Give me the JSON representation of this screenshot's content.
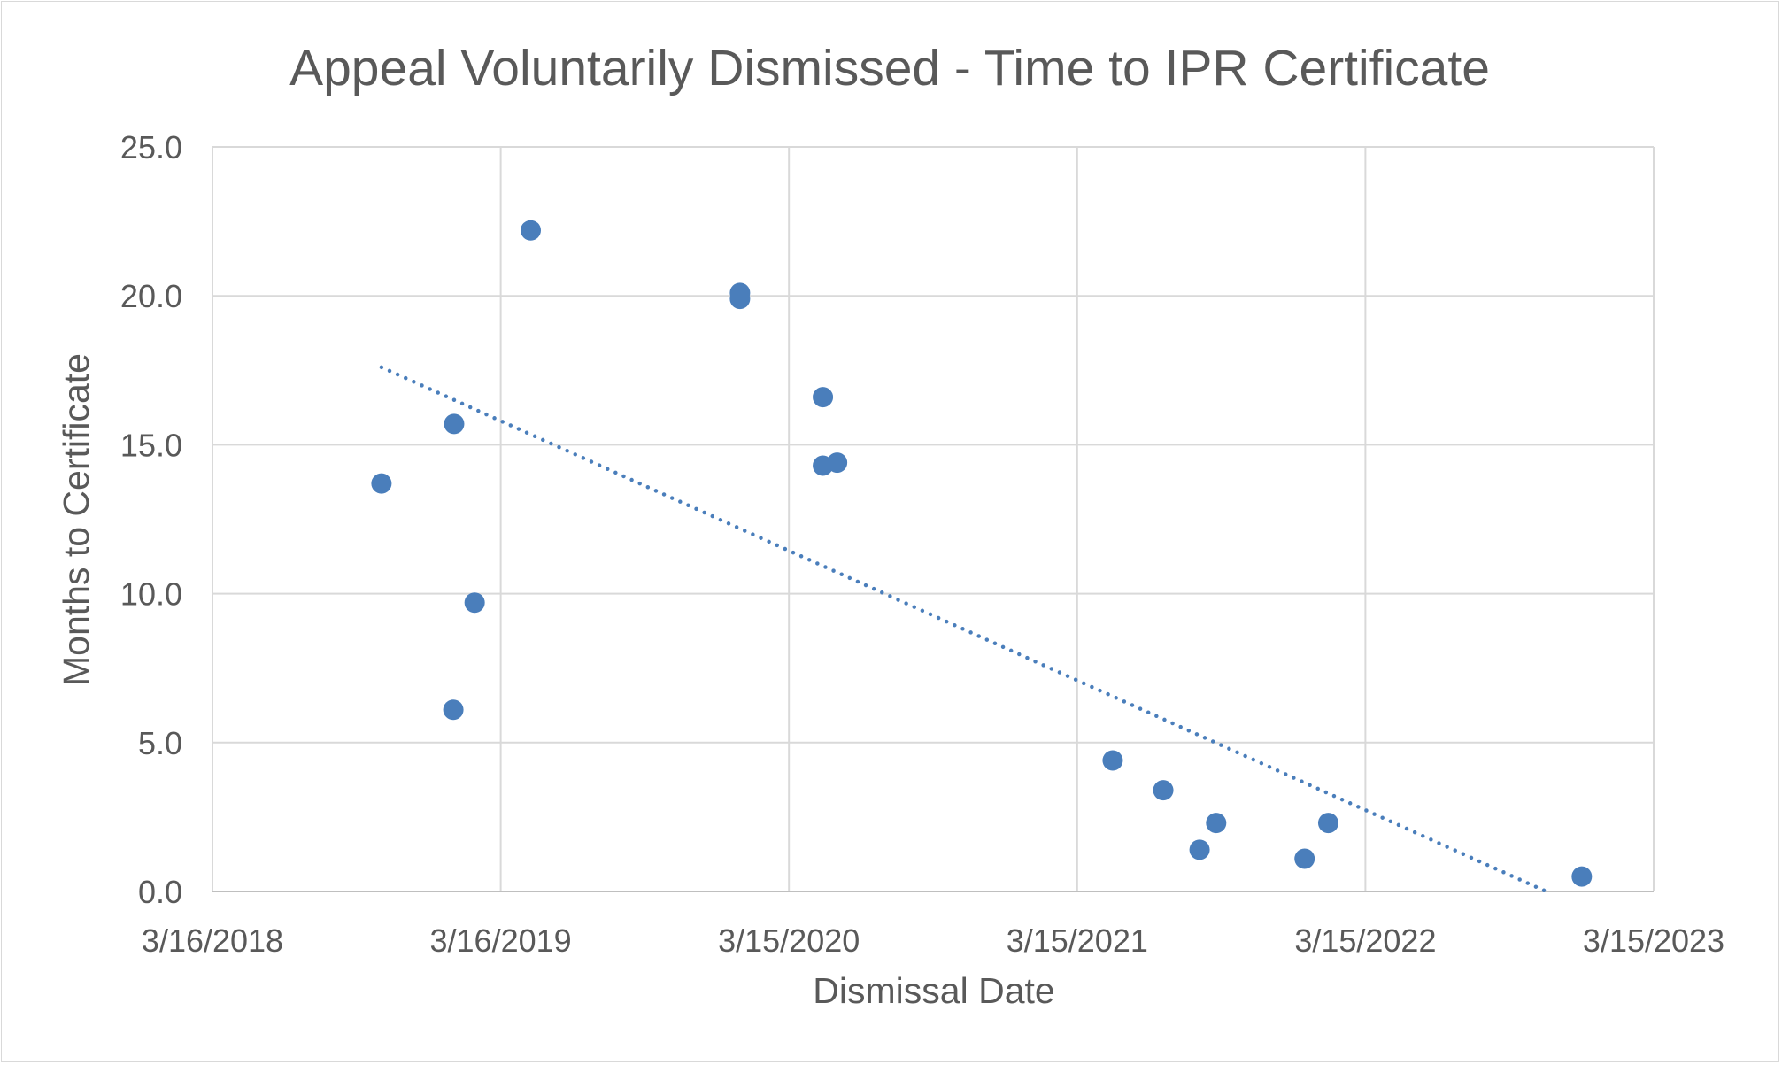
{
  "chart_data": {
    "type": "scatter",
    "title": "Appeal Voluntarily Dismissed - Time to IPR Certificate",
    "xlabel": "Dismissal Date",
    "ylabel": "Months to Certificate",
    "xlim": [
      "2018-03-16",
      "2023-03-15"
    ],
    "ylim": [
      0,
      25
    ],
    "x_ticks": [
      "3/16/2018",
      "3/16/2019",
      "3/15/2020",
      "3/15/2021",
      "3/15/2022",
      "3/15/2023"
    ],
    "x_tick_dates": [
      "2018-03-16",
      "2019-03-16",
      "2020-03-15",
      "2021-03-15",
      "2022-03-15",
      "2023-03-15"
    ],
    "y_ticks": [
      "0.0",
      "5.0",
      "10.0",
      "15.0",
      "20.0",
      "25.0"
    ],
    "y_tick_values": [
      0,
      5,
      10,
      15,
      20,
      25
    ],
    "grid": true,
    "trendline": "linear, dotted",
    "marker_color": "#4a7ebb",
    "points": [
      {
        "x": "2018-10-16",
        "y": 13.7
      },
      {
        "x": "2019-01-16",
        "y": 15.7
      },
      {
        "x": "2019-01-15",
        "y": 6.1
      },
      {
        "x": "2019-02-11",
        "y": 9.7
      },
      {
        "x": "2019-04-23",
        "y": 22.2
      },
      {
        "x": "2020-01-13",
        "y": 20.1
      },
      {
        "x": "2020-01-13",
        "y": 19.9
      },
      {
        "x": "2020-04-27",
        "y": 16.6
      },
      {
        "x": "2020-04-27",
        "y": 14.3
      },
      {
        "x": "2020-05-15",
        "y": 14.4
      },
      {
        "x": "2021-04-29",
        "y": 4.4
      },
      {
        "x": "2021-07-02",
        "y": 3.4
      },
      {
        "x": "2021-08-17",
        "y": 1.4
      },
      {
        "x": "2021-09-07",
        "y": 2.3
      },
      {
        "x": "2021-12-28",
        "y": 1.1
      },
      {
        "x": "2022-01-27",
        "y": 2.3
      },
      {
        "x": "2022-12-14",
        "y": 0.5
      }
    ]
  }
}
